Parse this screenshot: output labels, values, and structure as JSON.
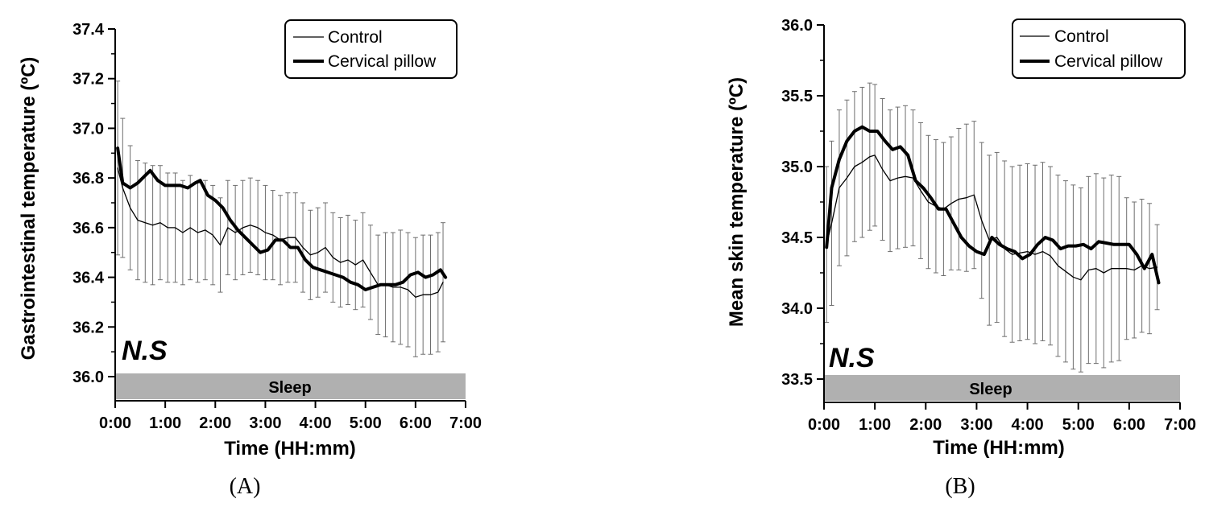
{
  "chart_data": [
    {
      "type": "line",
      "panel_label": "(A)",
      "ylabel": "Gastrointestinal temperature (ºC)",
      "xlabel": "Time (HH:mm)",
      "ylim": [
        36.0,
        37.4
      ],
      "yticks": [
        "36.0",
        "36.2",
        "36.4",
        "36.6",
        "36.8",
        "37.0",
        "37.2",
        "37.4"
      ],
      "xlim": [
        0,
        7
      ],
      "xticks": [
        "0:00",
        "1:00",
        "2:00",
        "3:00",
        "4:00",
        "5:00",
        "6:00",
        "7:00"
      ],
      "annotation": "N.S",
      "band_label": "Sleep",
      "legend_position": "top-right",
      "series": [
        {
          "name": "Control",
          "x": [
            0.05,
            0.15,
            0.3,
            0.45,
            0.6,
            0.75,
            0.9,
            1.05,
            1.2,
            1.35,
            1.5,
            1.65,
            1.8,
            1.95,
            2.1,
            2.25,
            2.4,
            2.55,
            2.7,
            2.85,
            3.0,
            3.15,
            3.3,
            3.45,
            3.6,
            3.75,
            3.9,
            4.05,
            4.2,
            4.35,
            4.5,
            4.65,
            4.8,
            4.95,
            5.1,
            5.25,
            5.4,
            5.55,
            5.7,
            5.85,
            6.0,
            6.15,
            6.3,
            6.45,
            6.55
          ],
          "values": [
            36.84,
            36.76,
            36.68,
            36.63,
            36.62,
            36.61,
            36.62,
            36.6,
            36.6,
            36.58,
            36.6,
            36.58,
            36.59,
            36.57,
            36.53,
            36.6,
            36.58,
            36.6,
            36.61,
            36.6,
            36.58,
            36.57,
            36.55,
            36.56,
            36.56,
            36.52,
            36.49,
            36.5,
            36.52,
            36.48,
            36.46,
            36.47,
            36.45,
            36.47,
            36.42,
            36.37,
            36.37,
            36.36,
            36.36,
            36.35,
            36.32,
            36.33,
            36.33,
            36.34,
            36.38
          ],
          "error": [
            0.35,
            0.28,
            0.25,
            0.24,
            0.24,
            0.24,
            0.23,
            0.22,
            0.22,
            0.21,
            0.21,
            0.2,
            0.2,
            0.2,
            0.19,
            0.19,
            0.19,
            0.19,
            0.19,
            0.19,
            0.19,
            0.18,
            0.18,
            0.18,
            0.18,
            0.18,
            0.18,
            0.18,
            0.18,
            0.18,
            0.18,
            0.18,
            0.18,
            0.19,
            0.19,
            0.2,
            0.21,
            0.22,
            0.23,
            0.23,
            0.24,
            0.24,
            0.24,
            0.24,
            0.24
          ]
        },
        {
          "name": "Cervical pillow",
          "x": [
            0.05,
            0.15,
            0.3,
            0.45,
            0.6,
            0.7,
            0.85,
            1.0,
            1.15,
            1.3,
            1.45,
            1.6,
            1.7,
            1.85,
            2.0,
            2.15,
            2.3,
            2.45,
            2.6,
            2.75,
            2.9,
            3.05,
            3.2,
            3.35,
            3.5,
            3.65,
            3.8,
            3.95,
            4.1,
            4.25,
            4.4,
            4.55,
            4.7,
            4.85,
            5.0,
            5.15,
            5.3,
            5.45,
            5.6,
            5.75,
            5.9,
            6.05,
            6.2,
            6.35,
            6.5,
            6.6
          ],
          "values": [
            36.92,
            36.78,
            36.76,
            36.78,
            36.81,
            36.83,
            36.79,
            36.77,
            36.77,
            36.77,
            36.76,
            36.78,
            36.79,
            36.73,
            36.71,
            36.68,
            36.63,
            36.59,
            36.56,
            36.53,
            36.5,
            36.51,
            36.55,
            36.55,
            36.52,
            36.52,
            36.47,
            36.44,
            36.43,
            36.42,
            36.41,
            36.4,
            36.38,
            36.37,
            36.35,
            36.36,
            36.37,
            36.37,
            36.37,
            36.38,
            36.41,
            36.42,
            36.4,
            36.41,
            36.43,
            36.4
          ]
        }
      ]
    },
    {
      "type": "line",
      "panel_label": "(B)",
      "ylabel": "Mean skin temperature (ºC)",
      "xlabel": "Time (HH:mm)",
      "ylim": [
        33.5,
        36.0
      ],
      "yticks": [
        "33.5",
        "34.0",
        "34.5",
        "35.0",
        "35.5",
        "36.0"
      ],
      "xlim": [
        0,
        7
      ],
      "xticks": [
        "0:00",
        "1:00",
        "2:00",
        "3:00",
        "4:00",
        "5:00",
        "6:00",
        "7:00"
      ],
      "annotation": "N.S",
      "band_label": "Sleep",
      "legend_position": "top-right",
      "series": [
        {
          "name": "Control",
          "x": [
            0.05,
            0.15,
            0.3,
            0.45,
            0.6,
            0.75,
            0.9,
            1.0,
            1.15,
            1.3,
            1.45,
            1.6,
            1.75,
            1.9,
            2.05,
            2.2,
            2.35,
            2.5,
            2.65,
            2.8,
            2.95,
            3.1,
            3.25,
            3.4,
            3.55,
            3.7,
            3.85,
            4.0,
            4.15,
            4.3,
            4.45,
            4.6,
            4.75,
            4.9,
            5.05,
            5.2,
            5.35,
            5.5,
            5.65,
            5.8,
            5.95,
            6.1,
            6.25,
            6.4,
            6.55
          ],
          "values": [
            34.45,
            34.6,
            34.85,
            34.92,
            35.0,
            35.03,
            35.07,
            35.08,
            34.98,
            34.9,
            34.92,
            34.93,
            34.92,
            34.83,
            34.75,
            34.72,
            34.7,
            34.74,
            34.77,
            34.78,
            34.8,
            34.62,
            34.48,
            34.5,
            34.42,
            34.38,
            34.39,
            34.4,
            34.38,
            34.4,
            34.37,
            34.3,
            34.26,
            34.22,
            34.2,
            34.27,
            34.28,
            34.25,
            34.28,
            34.28,
            34.28,
            34.27,
            34.3,
            34.28,
            34.29
          ],
          "error": [
            0.55,
            0.58,
            0.55,
            0.55,
            0.53,
            0.53,
            0.52,
            0.5,
            0.5,
            0.5,
            0.5,
            0.5,
            0.48,
            0.48,
            0.47,
            0.47,
            0.47,
            0.47,
            0.5,
            0.52,
            0.52,
            0.55,
            0.6,
            0.6,
            0.62,
            0.62,
            0.62,
            0.62,
            0.63,
            0.63,
            0.63,
            0.64,
            0.64,
            0.65,
            0.65,
            0.66,
            0.67,
            0.67,
            0.66,
            0.65,
            0.5,
            0.48,
            0.47,
            0.46,
            0.3
          ]
        },
        {
          "name": "Cervical pillow",
          "x": [
            0.05,
            0.15,
            0.3,
            0.45,
            0.6,
            0.75,
            0.9,
            1.05,
            1.2,
            1.35,
            1.5,
            1.65,
            1.8,
            1.95,
            2.1,
            2.25,
            2.4,
            2.55,
            2.7,
            2.85,
            3.0,
            3.15,
            3.3,
            3.45,
            3.6,
            3.75,
            3.9,
            4.05,
            4.2,
            4.35,
            4.5,
            4.65,
            4.8,
            4.95,
            5.1,
            5.25,
            5.4,
            5.55,
            5.7,
            5.85,
            6.0,
            6.15,
            6.3,
            6.45,
            6.58
          ],
          "values": [
            34.43,
            34.85,
            35.05,
            35.18,
            35.25,
            35.28,
            35.25,
            35.25,
            35.18,
            35.12,
            35.14,
            35.08,
            34.9,
            34.85,
            34.78,
            34.7,
            34.7,
            34.6,
            34.5,
            34.44,
            34.4,
            34.38,
            34.5,
            34.45,
            34.42,
            34.4,
            34.35,
            34.38,
            34.45,
            34.5,
            34.48,
            34.42,
            34.44,
            34.44,
            34.45,
            34.42,
            34.47,
            34.46,
            34.45,
            34.45,
            34.45,
            34.38,
            34.28,
            34.38,
            34.18
          ]
        }
      ]
    }
  ]
}
